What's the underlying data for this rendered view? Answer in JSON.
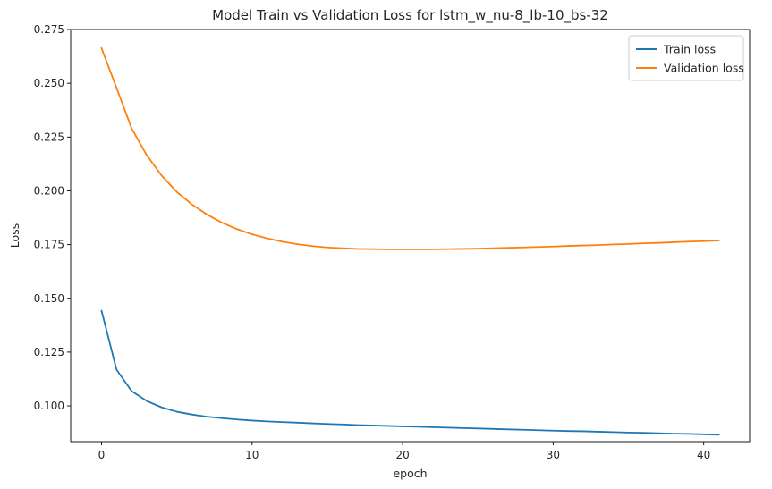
{
  "chart_data": {
    "type": "line",
    "title": "Model Train vs Validation Loss for lstm_w_nu-8_lb-10_bs-32",
    "xlabel": "epoch",
    "ylabel": "Loss",
    "xlim": [
      -2.05,
      43.05
    ],
    "ylim": [
      0.0834,
      0.275
    ],
    "x_ticks": [
      0,
      10,
      20,
      30,
      40
    ],
    "x_tick_labels": [
      "0",
      "10",
      "20",
      "30",
      "40"
    ],
    "y_ticks": [
      0.1,
      0.125,
      0.15,
      0.175,
      0.2,
      0.225,
      0.25,
      0.275
    ],
    "y_tick_labels": [
      "0.100",
      "0.125",
      "0.150",
      "0.175",
      "0.200",
      "0.225",
      "0.250",
      "0.275"
    ],
    "grid": false,
    "legend_position": "top-right",
    "x": [
      0,
      1,
      2,
      3,
      4,
      5,
      6,
      7,
      8,
      9,
      10,
      11,
      12,
      13,
      14,
      15,
      16,
      17,
      18,
      19,
      20,
      21,
      22,
      23,
      24,
      25,
      26,
      27,
      28,
      29,
      30,
      31,
      32,
      33,
      34,
      35,
      36,
      37,
      38,
      39,
      40,
      41
    ],
    "series": [
      {
        "name": "Train loss",
        "color": "#1f77b4",
        "values": [
          0.1442,
          0.1168,
          0.1069,
          0.1023,
          0.0993,
          0.0973,
          0.096,
          0.095,
          0.0943,
          0.0937,
          0.0932,
          0.0928,
          0.0925,
          0.0922,
          0.0919,
          0.0916,
          0.0914,
          0.0911,
          0.0909,
          0.0907,
          0.0905,
          0.0903,
          0.0901,
          0.0899,
          0.0897,
          0.0895,
          0.0893,
          0.0891,
          0.0889,
          0.0887,
          0.0885,
          0.0883,
          0.0882,
          0.088,
          0.0878,
          0.0876,
          0.0875,
          0.0873,
          0.0871,
          0.087,
          0.0868,
          0.0866
        ]
      },
      {
        "name": "Validation loss",
        "color": "#ff7f0e",
        "values": [
          0.2663,
          0.2478,
          0.229,
          0.2166,
          0.207,
          0.1995,
          0.1937,
          0.189,
          0.1852,
          0.1822,
          0.1798,
          0.1779,
          0.1764,
          0.1752,
          0.1743,
          0.1737,
          0.1733,
          0.173,
          0.1729,
          0.1728,
          0.1728,
          0.1728,
          0.1728,
          0.1729,
          0.173,
          0.1731,
          0.1733,
          0.1735,
          0.1737,
          0.1739,
          0.1741,
          0.1744,
          0.1746,
          0.1748,
          0.1751,
          0.1753,
          0.1756,
          0.1758,
          0.1761,
          0.1764,
          0.1766,
          0.1769
        ]
      }
    ]
  }
}
